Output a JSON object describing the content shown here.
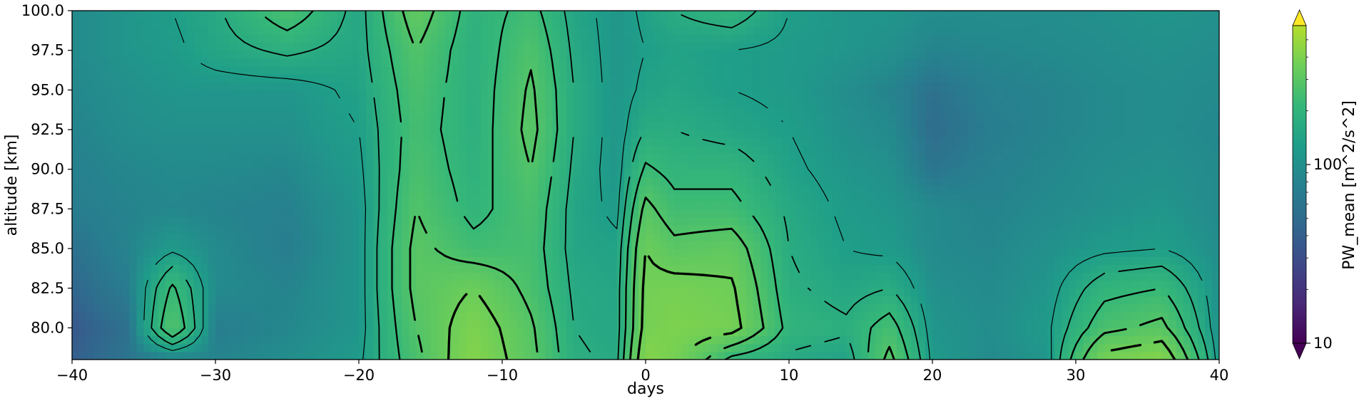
{
  "chart_data": {
    "type": "heatmap",
    "xlabel": "days",
    "ylabel": "altitude [km]",
    "xlim": [
      -40,
      40
    ],
    "ylim": [
      78,
      100
    ],
    "x_ticks": [
      "−40",
      "−30",
      "−20",
      "−10",
      "0",
      "10",
      "20",
      "30",
      "40"
    ],
    "x_tick_values": [
      -40,
      -30,
      -20,
      -10,
      0,
      10,
      20,
      30,
      40
    ],
    "y_ticks": [
      "80.0",
      "82.5",
      "85.0",
      "87.5",
      "90.0",
      "92.5",
      "95.0",
      "97.5",
      "100.0"
    ],
    "y_tick_values": [
      80,
      82.5,
      85,
      87.5,
      90,
      92.5,
      95,
      97.5,
      100
    ],
    "colorbar": {
      "label": "PW_mean [m^2/s^2]",
      "scale": "log",
      "range": [
        10,
        600
      ],
      "tick_labels": [
        "10",
        "100"
      ],
      "tick_values": [
        10,
        100
      ],
      "extend": "both",
      "colormap": "viridis"
    },
    "grid": false,
    "field": {
      "x": [
        -40,
        -36,
        -33,
        -30,
        -25,
        -20,
        -16,
        -12,
        -8,
        -5,
        -2,
        0,
        2,
        6,
        10,
        14,
        17,
        20,
        24,
        28,
        32,
        36,
        40
      ],
      "y": [
        78,
        80,
        82.5,
        85,
        87.5,
        90,
        92.5,
        95,
        97.5,
        100
      ],
      "values": [
        [
          40,
          60,
          70,
          80,
          95,
          120,
          260,
          420,
          300,
          180,
          160,
          420,
          380,
          200,
          160,
          140,
          300,
          120,
          90,
          110,
          380,
          420,
          110
        ],
        [
          35,
          55,
          280,
          70,
          85,
          110,
          280,
          400,
          290,
          170,
          150,
          380,
          400,
          380,
          200,
          180,
          250,
          110,
          95,
          120,
          260,
          300,
          100
        ],
        [
          45,
          70,
          230,
          90,
          80,
          110,
          300,
          350,
          260,
          160,
          150,
          370,
          380,
          360,
          180,
          150,
          170,
          100,
          90,
          110,
          200,
          220,
          100
        ],
        [
          55,
          80,
          120,
          90,
          70,
          110,
          300,
          240,
          250,
          150,
          140,
          350,
          300,
          320,
          170,
          130,
          120,
          90,
          85,
          100,
          120,
          130,
          95
        ],
        [
          70,
          80,
          85,
          80,
          75,
          110,
          280,
          200,
          260,
          150,
          120,
          300,
          240,
          240,
          160,
          120,
          110,
          90,
          80,
          90,
          100,
          110,
          90
        ],
        [
          75,
          85,
          90,
          90,
          85,
          120,
          260,
          190,
          280,
          160,
          110,
          230,
          200,
          200,
          140,
          110,
          100,
          60,
          75,
          85,
          95,
          100,
          90
        ],
        [
          80,
          95,
          100,
          100,
          100,
          130,
          250,
          180,
          300,
          170,
          110,
          170,
          170,
          150,
          130,
          100,
          90,
          50,
          70,
          80,
          90,
          95,
          85
        ],
        [
          85,
          100,
          110,
          110,
          110,
          140,
          260,
          180,
          290,
          170,
          110,
          140,
          150,
          130,
          120,
          95,
          80,
          55,
          75,
          80,
          90,
          95,
          90
        ],
        [
          90,
          110,
          120,
          150,
          180,
          150,
          280,
          180,
          270,
          160,
          110,
          130,
          140,
          130,
          120,
          110,
          100,
          80,
          85,
          90,
          95,
          100,
          95
        ],
        [
          90,
          110,
          130,
          160,
          260,
          150,
          320,
          190,
          240,
          150,
          110,
          140,
          170,
          200,
          130,
          110,
          110,
          95,
          95,
          95,
          100,
          110,
          100
        ]
      ]
    }
  }
}
